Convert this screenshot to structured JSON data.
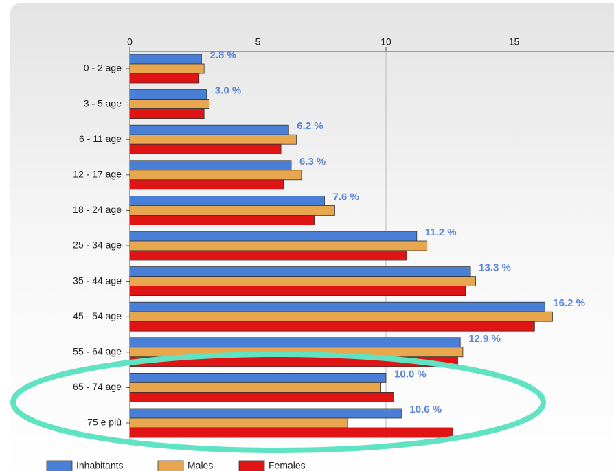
{
  "chart_data": {
    "type": "hbar",
    "categories": [
      "0 - 2 age",
      "3 - 5 age",
      "6 - 11 age",
      "12 - 17 age",
      "18 - 24 age",
      "25 - 34 age",
      "35 - 44 age",
      "45 - 54 age",
      "55 - 64 age",
      "65 - 74 age",
      "75 e più"
    ],
    "series": [
      {
        "name": "Inhabitants",
        "color": "#4a7fd8",
        "values": [
          2.8,
          3.0,
          6.2,
          6.3,
          7.6,
          11.2,
          13.3,
          16.2,
          12.9,
          10.0,
          10.6
        ],
        "value_labels": [
          "2.8 %",
          "3.0 %",
          "6.2 %",
          "6.3 %",
          "7.6 %",
          "11.2 %",
          "13.3 %",
          "16.2 %",
          "12.9 %",
          "10.0 %",
          "10.6 %"
        ]
      },
      {
        "name": "Males",
        "color": "#e8a64e",
        "values": [
          2.9,
          3.1,
          6.5,
          6.7,
          8.0,
          11.6,
          13.5,
          16.5,
          13.0,
          9.8,
          8.5
        ]
      },
      {
        "name": "Females",
        "color": "#e01414",
        "values": [
          2.7,
          2.9,
          5.9,
          6.0,
          7.2,
          10.8,
          13.1,
          15.8,
          12.8,
          10.3,
          12.6
        ]
      }
    ],
    "xlim": [
      0,
      18.9
    ],
    "xticks": [
      0,
      5,
      10,
      15
    ],
    "grid": true
  }
}
